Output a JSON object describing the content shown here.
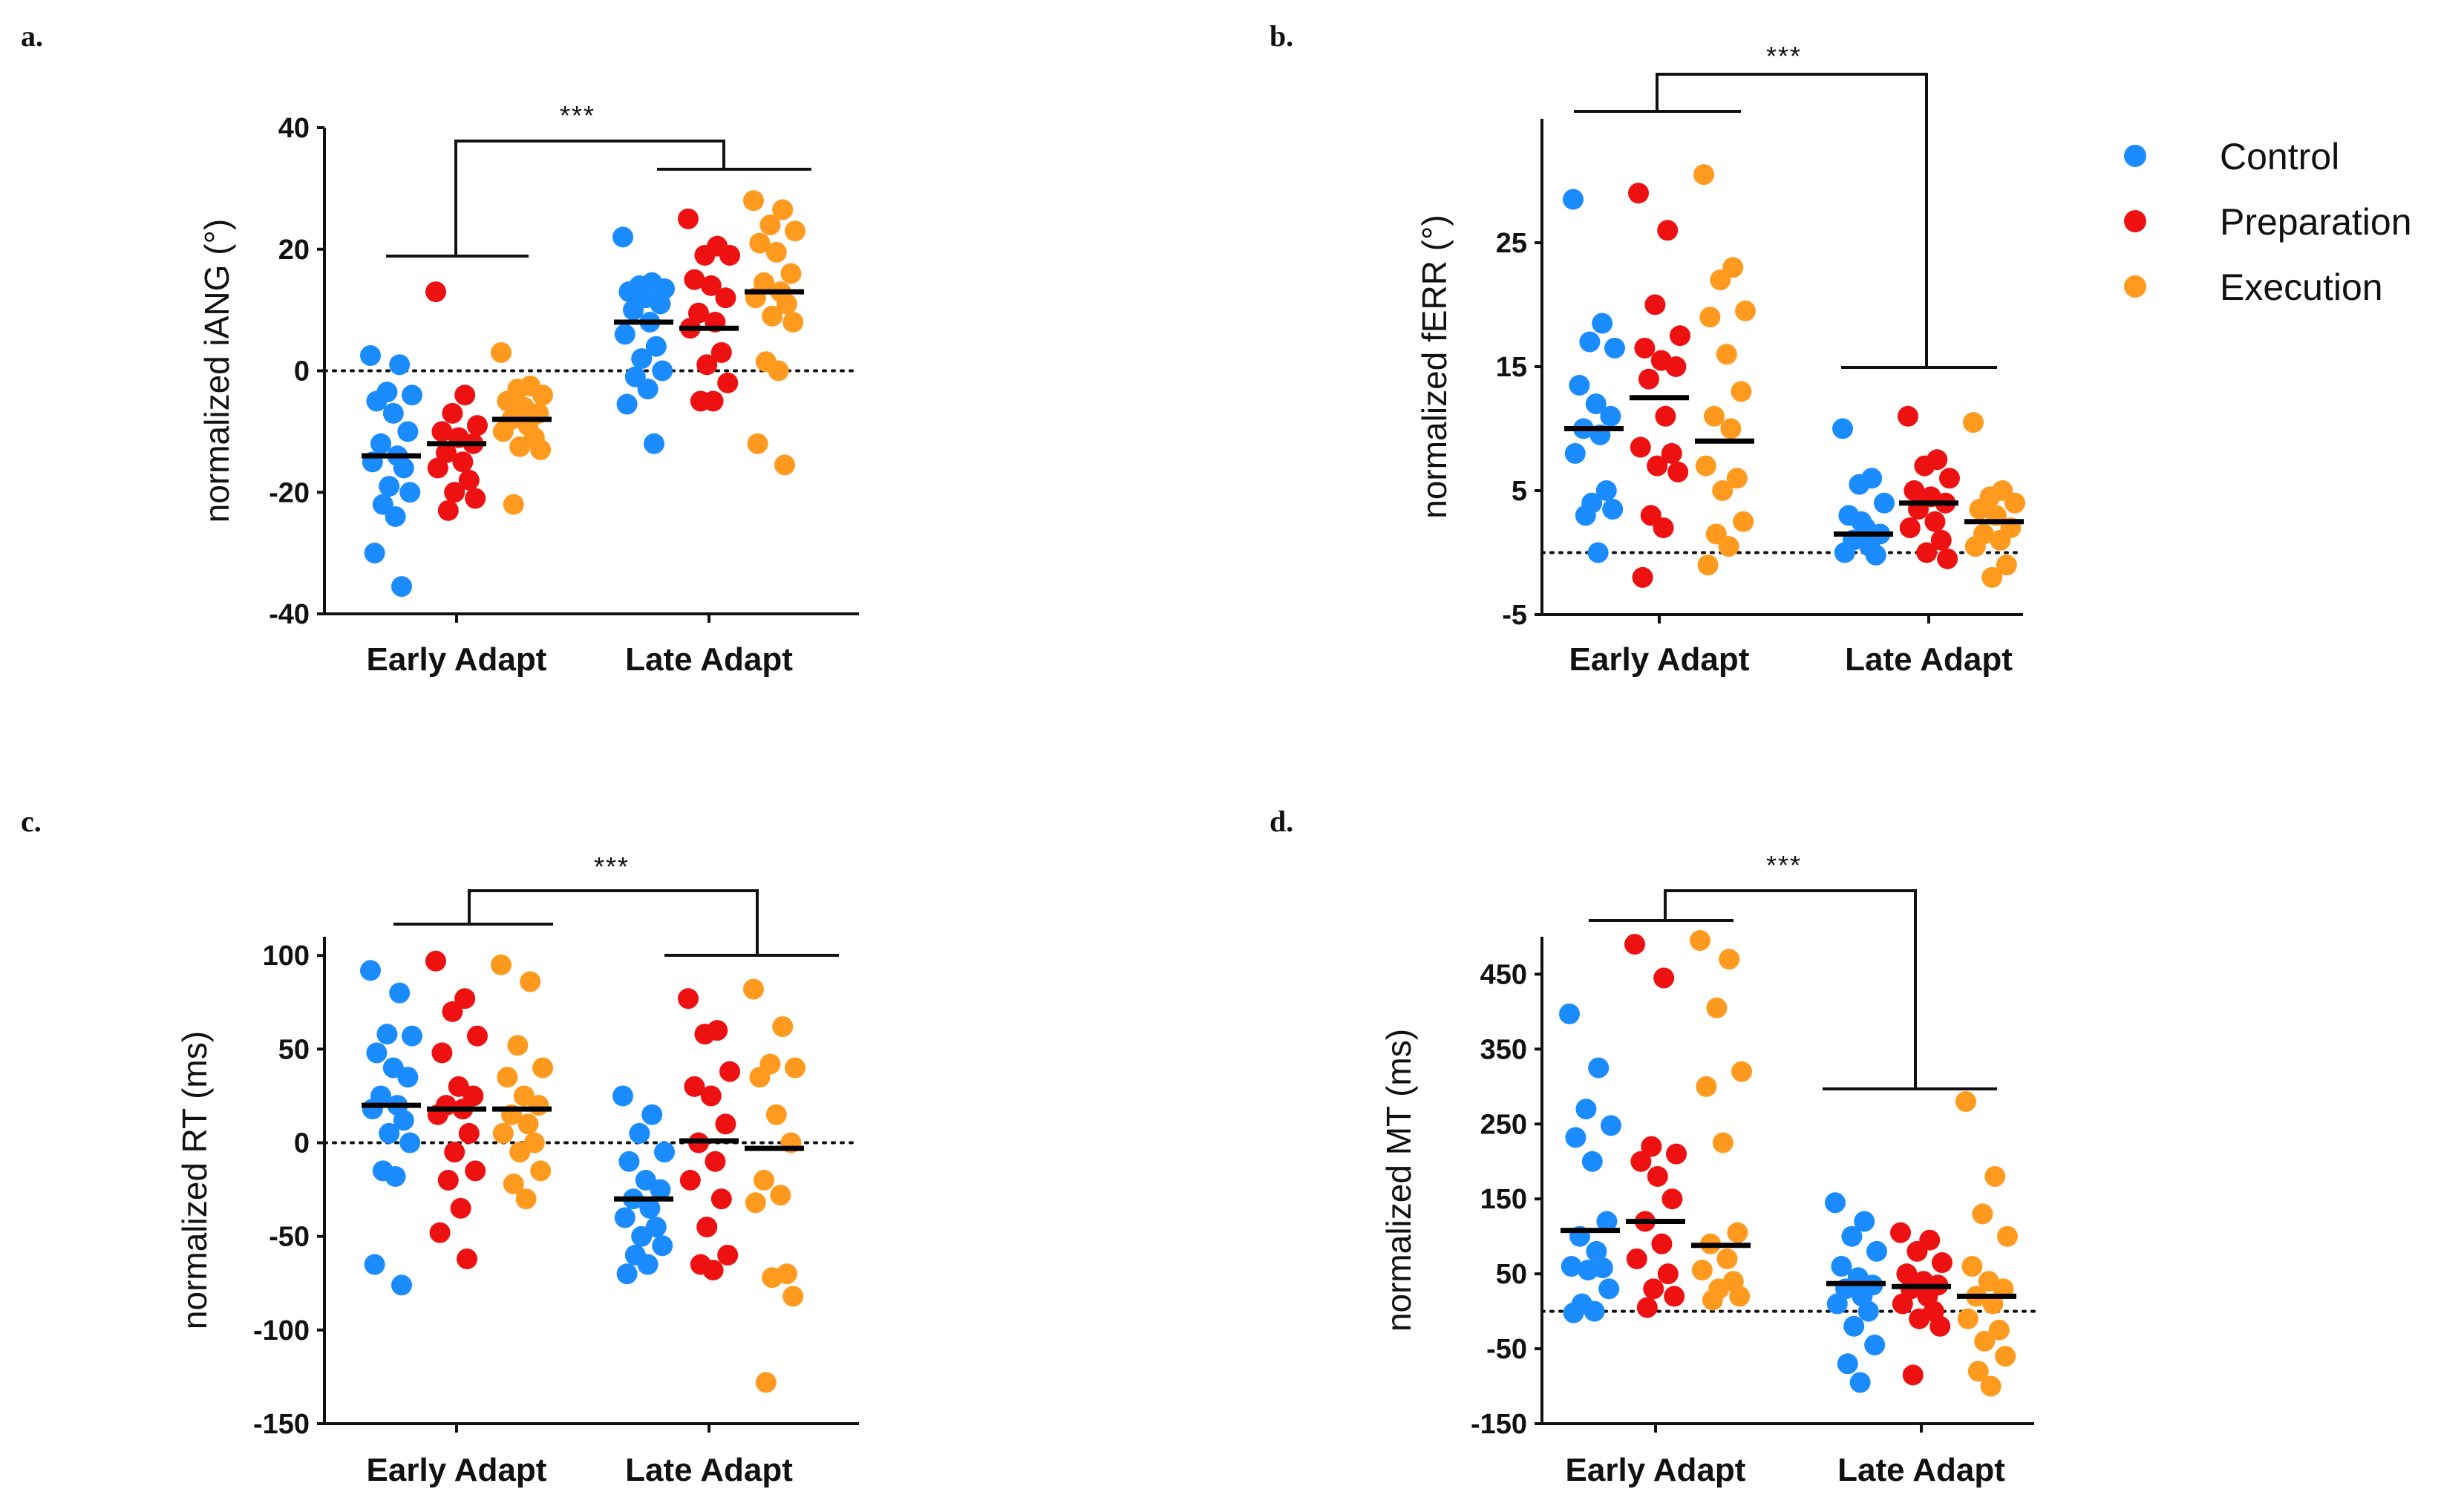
{
  "legend": [
    {
      "name": "Control",
      "color": "#1a8cff"
    },
    {
      "name": "Preparation",
      "color": "#ee1111"
    },
    {
      "name": "Execution",
      "color": "#ff9a1f"
    }
  ],
  "chart_data": [
    {
      "id": "a",
      "panel_label": "a.",
      "type": "scatter",
      "ylabel": "normalized iANG (°)",
      "ylim": [
        -40,
        40
      ],
      "yticks": [
        40,
        20,
        0,
        -20,
        -40
      ],
      "categories": [
        "Early Adapt",
        "Late Adapt"
      ],
      "significance": "***",
      "reference_line": 0,
      "series": [
        {
          "name": "Control",
          "color": "#1a8cff",
          "early": [
            2.5,
            1,
            -3.5,
            -4,
            -5,
            -7,
            -10,
            -12,
            -14,
            -15,
            -16,
            -19,
            -20,
            -22,
            -24,
            -30,
            -35.5
          ],
          "early_mean": -14,
          "late": [
            22,
            14.5,
            14,
            13.5,
            13,
            12,
            11,
            10,
            8,
            6,
            4,
            2,
            0,
            -1,
            -3,
            -5.5,
            -12
          ],
          "late_mean": 8
        },
        {
          "name": "Preparation",
          "color": "#ee1111",
          "early": [
            13,
            -4,
            -7,
            -9,
            -10,
            -11,
            -12,
            -13.5,
            -15,
            -16,
            -18,
            -20,
            -21,
            -23
          ],
          "early_mean": -12,
          "late": [
            25,
            20.5,
            19,
            19,
            15,
            14,
            12,
            9.5,
            8,
            7,
            3,
            1,
            -2,
            -5,
            -5
          ],
          "late_mean": 7
        },
        {
          "name": "Execution",
          "color": "#ff9a1f",
          "early": [
            3,
            -2.5,
            -3,
            -4,
            -5,
            -6,
            -7,
            -8,
            -9,
            -10,
            -11,
            -12.5,
            -13,
            -22
          ],
          "early_mean": -8,
          "late": [
            28,
            26.5,
            24,
            23,
            21,
            19.5,
            16,
            14.5,
            13,
            12,
            11,
            9,
            8,
            1.5,
            0,
            -12,
            -15.5
          ],
          "late_mean": 13
        }
      ]
    },
    {
      "id": "b",
      "panel_label": "b.",
      "type": "scatter",
      "ylabel": "normalized fERR (°)",
      "ylim": [
        -5,
        35
      ],
      "yticks": [
        25,
        15,
        5,
        -5
      ],
      "categories": [
        "Early Adapt",
        "Late Adapt"
      ],
      "significance": "***",
      "reference_line": 0,
      "series": [
        {
          "name": "Control",
          "color": "#1a8cff",
          "early": [
            28.5,
            18.5,
            17,
            16.5,
            13.5,
            12,
            11,
            10,
            9.5,
            8,
            5,
            4,
            3.5,
            3,
            0
          ],
          "early_mean": 10,
          "late": [
            10,
            6,
            5.5,
            4,
            3,
            2,
            1.5,
            1,
            0.5,
            0,
            -0.2,
            2.5
          ],
          "late_mean": 1.5
        },
        {
          "name": "Preparation",
          "color": "#ee1111",
          "early": [
            29,
            26,
            20,
            17.5,
            16.5,
            15.5,
            15,
            14,
            11,
            8.5,
            8,
            7,
            6.5,
            3,
            2,
            -2
          ],
          "early_mean": 12.5,
          "late": [
            11,
            7.5,
            7,
            6,
            5,
            4.5,
            4,
            3.5,
            2.5,
            2,
            1,
            0,
            -0.5
          ],
          "late_mean": 4
        },
        {
          "name": "Execution",
          "color": "#ff9a1f",
          "early": [
            30.5,
            23,
            22,
            19.5,
            19,
            16,
            13,
            11,
            10,
            7,
            6,
            5,
            2.5,
            1.5,
            0.5,
            -1
          ],
          "early_mean": 9,
          "late": [
            10.5,
            5,
            4.5,
            4,
            3.5,
            3,
            2,
            1.5,
            1,
            0.5,
            -1,
            -2
          ],
          "late_mean": 2.5
        }
      ]
    },
    {
      "id": "c",
      "panel_label": "c.",
      "type": "scatter",
      "ylabel": "normalized RT (ms)",
      "ylim": [
        -150,
        110
      ],
      "yticks": [
        100,
        50,
        0,
        -50,
        -100,
        -150
      ],
      "categories": [
        "Early Adapt",
        "Late Adapt"
      ],
      "significance": "***",
      "reference_line": 0,
      "series": [
        {
          "name": "Control",
          "color": "#1a8cff",
          "early": [
            92,
            80,
            58,
            57,
            48,
            40,
            35,
            25,
            20,
            18,
            12,
            5,
            0,
            -15,
            -18,
            -65,
            -76
          ],
          "early_mean": 20,
          "late": [
            25,
            15,
            5,
            -5,
            -10,
            -20,
            -25,
            -30,
            -35,
            -40,
            -45,
            -50,
            -55,
            -60,
            -65,
            -70
          ],
          "late_mean": -30
        },
        {
          "name": "Preparation",
          "color": "#ee1111",
          "early": [
            97,
            77,
            70,
            57,
            48,
            30,
            25,
            20,
            18,
            15,
            5,
            -5,
            -15,
            -20,
            -35,
            -48,
            -62
          ],
          "early_mean": 18,
          "late": [
            77,
            60,
            58,
            38,
            30,
            25,
            10,
            0,
            -10,
            -20,
            -30,
            -45,
            -60,
            -65,
            -68
          ],
          "late_mean": 1
        },
        {
          "name": "Execution",
          "color": "#ff9a1f",
          "early": [
            95,
            86,
            52,
            40,
            35,
            25,
            20,
            15,
            10,
            5,
            0,
            -5,
            -15,
            -22,
            -30
          ],
          "early_mean": 18,
          "late": [
            82,
            62,
            42,
            40,
            35,
            15,
            0,
            -20,
            -28,
            -32,
            -70,
            -72,
            -82,
            -128
          ],
          "late_mean": -3
        }
      ]
    },
    {
      "id": "d",
      "panel_label": "d.",
      "type": "scatter",
      "ylabel": "normalized MT (ms)",
      "ylim": [
        -150,
        500
      ],
      "yticks": [
        450,
        350,
        250,
        150,
        50,
        -50,
        -150
      ],
      "categories": [
        "Early Adapt",
        "Late Adapt"
      ],
      "significance": "***",
      "reference_line": 0,
      "series": [
        {
          "name": "Control",
          "color": "#1a8cff",
          "early": [
            397,
            325,
            270,
            248,
            232,
            200,
            120,
            100,
            80,
            60,
            58,
            55,
            30,
            10,
            0,
            -2
          ],
          "early_mean": 108,
          "late": [
            145,
            120,
            100,
            80,
            60,
            45,
            35,
            30,
            20,
            10,
            0,
            -20,
            -45,
            -70,
            -95
          ],
          "late_mean": 37
        },
        {
          "name": "Preparation",
          "color": "#ee1111",
          "early": [
            490,
            445,
            220,
            210,
            200,
            180,
            150,
            120,
            90,
            70,
            50,
            30,
            20,
            5
          ],
          "early_mean": 120,
          "late": [
            105,
            95,
            80,
            65,
            50,
            40,
            35,
            30,
            20,
            10,
            0,
            -10,
            -20,
            -85
          ],
          "late_mean": 33
        },
        {
          "name": "Execution",
          "color": "#ff9a1f",
          "early": [
            495,
            470,
            405,
            320,
            300,
            225,
            105,
            90,
            70,
            55,
            40,
            30,
            20,
            15
          ],
          "early_mean": 88,
          "late": [
            280,
            180,
            130,
            100,
            60,
            40,
            30,
            20,
            10,
            -10,
            -25,
            -40,
            -60,
            -80,
            -100
          ],
          "late_mean": 20
        }
      ]
    }
  ]
}
